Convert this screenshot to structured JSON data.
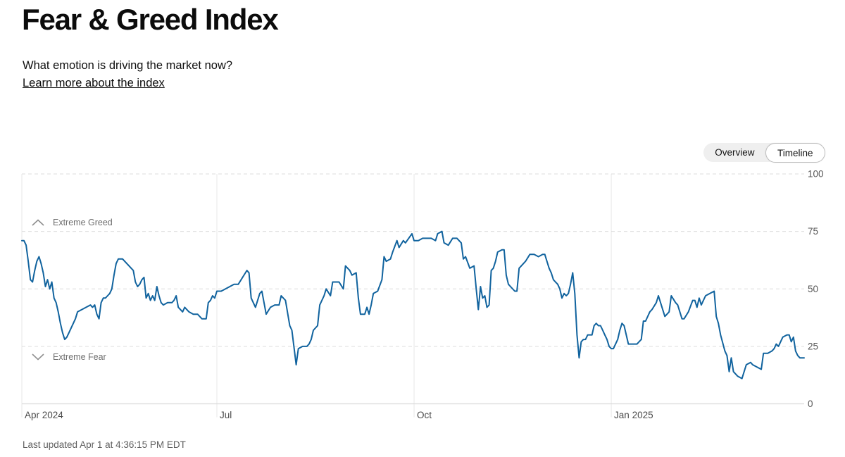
{
  "page": {
    "title": "Fear & Greed Index",
    "subtitle": "What emotion is driving the market now?",
    "learn_more_label": "Learn more about the index",
    "last_updated": "Last updated Apr 1 at 4:36:15 PM EDT"
  },
  "view_toggle": {
    "options": [
      {
        "label": "Overview",
        "selected": false
      },
      {
        "label": "Timeline",
        "selected": true
      }
    ]
  },
  "chart_data": {
    "type": "line",
    "series_name": "Fear & Greed Index",
    "x_unit": "days since 2024-04-01",
    "x_range_days": [
      0,
      365
    ],
    "ylim": [
      0,
      100
    ],
    "grid": true,
    "legend_position": "none",
    "colors": {
      "line": "#11639e",
      "grid_dashed": "#dcdcdc",
      "grid_vertical": "#e7e7e7",
      "axis_zero_line": "#d9d9d9",
      "tick_label": "#565656",
      "x_tick_label": "#4c4c4c",
      "annotation": "#6e6e6e",
      "annotation_icon": "#8f8f8f"
    },
    "y_ticks": [
      100,
      75,
      50,
      25,
      0
    ],
    "x_ticks": [
      {
        "day": 0,
        "label": "Apr 2024"
      },
      {
        "day": 91,
        "label": "Jul"
      },
      {
        "day": 183,
        "label": "Oct"
      },
      {
        "day": 275,
        "label": "Jan 2025"
      }
    ],
    "annotations": [
      {
        "icon": "chevron-up-icon",
        "label": "Extreme Greed",
        "y": 79
      },
      {
        "icon": "chevron-down-icon",
        "label": "Extreme Fear",
        "y": 20.4
      }
    ],
    "points": [
      [
        0,
        71
      ],
      [
        1,
        71
      ],
      [
        2,
        69
      ],
      [
        3,
        62
      ],
      [
        4,
        54
      ],
      [
        5,
        53
      ],
      [
        6,
        58
      ],
      [
        7,
        62
      ],
      [
        8,
        64
      ],
      [
        9,
        61
      ],
      [
        10,
        57
      ],
      [
        11,
        51
      ],
      [
        12,
        54
      ],
      [
        13,
        50
      ],
      [
        14,
        53
      ],
      [
        15,
        46
      ],
      [
        16,
        44
      ],
      [
        17,
        40
      ],
      [
        18,
        35
      ],
      [
        19,
        31
      ],
      [
        20,
        28
      ],
      [
        21,
        29
      ],
      [
        22,
        31
      ],
      [
        23,
        33
      ],
      [
        24,
        35
      ],
      [
        25,
        37
      ],
      [
        26,
        40
      ],
      [
        28,
        41
      ],
      [
        30,
        42
      ],
      [
        32,
        43
      ],
      [
        33,
        42
      ],
      [
        34,
        43
      ],
      [
        35,
        39
      ],
      [
        36,
        37
      ],
      [
        37,
        44
      ],
      [
        38,
        46
      ],
      [
        39,
        46
      ],
      [
        40,
        47
      ],
      [
        41,
        48
      ],
      [
        42,
        50
      ],
      [
        43,
        56
      ],
      [
        44,
        61
      ],
      [
        45,
        63
      ],
      [
        46,
        63
      ],
      [
        47,
        63
      ],
      [
        48,
        62
      ],
      [
        50,
        60
      ],
      [
        52,
        58
      ],
      [
        53,
        53
      ],
      [
        54,
        51
      ],
      [
        55,
        52
      ],
      [
        56,
        54
      ],
      [
        57,
        55
      ],
      [
        58,
        46
      ],
      [
        59,
        48
      ],
      [
        60,
        45
      ],
      [
        61,
        47
      ],
      [
        62,
        45
      ],
      [
        63,
        51
      ],
      [
        64,
        47
      ],
      [
        65,
        44
      ],
      [
        66,
        43
      ],
      [
        68,
        44
      ],
      [
        70,
        44
      ],
      [
        71,
        45
      ],
      [
        72,
        47
      ],
      [
        73,
        42
      ],
      [
        74,
        41
      ],
      [
        75,
        40
      ],
      [
        76,
        42
      ],
      [
        78,
        40
      ],
      [
        80,
        39
      ],
      [
        82,
        39
      ],
      [
        84,
        37
      ],
      [
        86,
        37
      ],
      [
        87,
        44
      ],
      [
        88,
        45
      ],
      [
        89,
        47
      ],
      [
        90,
        46
      ],
      [
        91,
        49
      ],
      [
        93,
        49
      ],
      [
        95,
        50
      ],
      [
        97,
        51
      ],
      [
        99,
        52
      ],
      [
        101,
        52
      ],
      [
        103,
        55
      ],
      [
        105,
        58
      ],
      [
        106,
        57
      ],
      [
        107,
        46
      ],
      [
        109,
        42
      ],
      [
        111,
        48
      ],
      [
        112,
        49
      ],
      [
        114,
        39
      ],
      [
        116,
        42
      ],
      [
        118,
        43
      ],
      [
        120,
        43
      ],
      [
        121,
        47
      ],
      [
        123,
        45
      ],
      [
        125,
        34
      ],
      [
        126,
        32
      ],
      [
        128,
        17
      ],
      [
        129,
        24
      ],
      [
        131,
        25
      ],
      [
        133,
        25
      ],
      [
        134,
        26
      ],
      [
        135,
        28
      ],
      [
        136,
        32
      ],
      [
        138,
        34
      ],
      [
        139,
        43
      ],
      [
        141,
        47
      ],
      [
        142,
        50
      ],
      [
        144,
        47
      ],
      [
        145,
        53
      ],
      [
        147,
        53
      ],
      [
        148,
        53
      ],
      [
        150,
        50
      ],
      [
        151,
        60
      ],
      [
        153,
        58
      ],
      [
        154,
        56
      ],
      [
        156,
        57
      ],
      [
        157,
        46
      ],
      [
        158,
        39
      ],
      [
        160,
        39
      ],
      [
        161,
        42
      ],
      [
        162,
        39
      ],
      [
        163,
        43
      ],
      [
        164,
        48
      ],
      [
        166,
        49
      ],
      [
        168,
        54
      ],
      [
        169,
        64
      ],
      [
        170,
        62
      ],
      [
        172,
        63
      ],
      [
        173,
        66
      ],
      [
        175,
        71
      ],
      [
        176,
        68
      ],
      [
        178,
        71
      ],
      [
        179,
        70
      ],
      [
        182,
        74
      ],
      [
        183,
        71
      ],
      [
        185,
        71
      ],
      [
        187,
        72
      ],
      [
        189,
        72
      ],
      [
        191,
        72
      ],
      [
        193,
        71
      ],
      [
        194,
        74
      ],
      [
        196,
        75
      ],
      [
        197,
        70
      ],
      [
        199,
        69
      ],
      [
        201,
        72
      ],
      [
        203,
        72
      ],
      [
        205,
        70
      ],
      [
        206,
        63
      ],
      [
        207,
        64
      ],
      [
        209,
        59
      ],
      [
        211,
        60
      ],
      [
        212,
        50
      ],
      [
        213,
        41
      ],
      [
        214,
        51
      ],
      [
        215,
        46
      ],
      [
        216,
        47
      ],
      [
        217,
        42
      ],
      [
        218,
        43
      ],
      [
        219,
        58
      ],
      [
        220,
        59
      ],
      [
        221,
        62
      ],
      [
        222,
        66
      ],
      [
        224,
        67
      ],
      [
        225,
        67
      ],
      [
        226,
        56
      ],
      [
        227,
        52
      ],
      [
        228,
        51
      ],
      [
        230,
        49
      ],
      [
        231,
        49
      ],
      [
        232,
        59
      ],
      [
        234,
        61
      ],
      [
        235,
        62
      ],
      [
        237,
        65
      ],
      [
        239,
        65
      ],
      [
        241,
        64
      ],
      [
        243,
        65
      ],
      [
        244,
        65
      ],
      [
        245,
        62
      ],
      [
        246,
        59
      ],
      [
        247,
        57
      ],
      [
        248,
        54
      ],
      [
        249,
        53
      ],
      [
        250,
        52
      ],
      [
        251,
        50
      ],
      [
        252,
        46
      ],
      [
        253,
        48
      ],
      [
        254,
        47
      ],
      [
        255,
        48
      ],
      [
        256,
        52
      ],
      [
        257,
        57
      ],
      [
        258,
        48
      ],
      [
        259,
        30
      ],
      [
        260,
        20
      ],
      [
        261,
        27
      ],
      [
        262,
        28
      ],
      [
        263,
        28
      ],
      [
        264,
        30
      ],
      [
        266,
        30
      ],
      [
        267,
        34
      ],
      [
        268,
        35
      ],
      [
        269,
        34
      ],
      [
        270,
        34
      ],
      [
        271,
        32
      ],
      [
        272,
        30
      ],
      [
        273,
        28
      ],
      [
        274,
        25
      ],
      [
        275,
        24
      ],
      [
        276,
        24
      ],
      [
        278,
        28
      ],
      [
        279,
        32
      ],
      [
        280,
        35
      ],
      [
        281,
        34
      ],
      [
        283,
        26
      ],
      [
        285,
        26
      ],
      [
        287,
        26
      ],
      [
        288,
        27
      ],
      [
        289,
        28
      ],
      [
        290,
        36
      ],
      [
        291,
        36
      ],
      [
        293,
        40
      ],
      [
        294,
        41
      ],
      [
        296,
        44
      ],
      [
        297,
        47
      ],
      [
        299,
        41
      ],
      [
        300,
        38
      ],
      [
        302,
        40
      ],
      [
        303,
        47
      ],
      [
        305,
        44
      ],
      [
        306,
        43
      ],
      [
        308,
        37
      ],
      [
        309,
        37
      ],
      [
        311,
        40
      ],
      [
        313,
        45
      ],
      [
        314,
        45
      ],
      [
        315,
        42
      ],
      [
        316,
        46
      ],
      [
        317,
        43
      ],
      [
        319,
        47
      ],
      [
        321,
        48
      ],
      [
        323,
        49
      ],
      [
        324,
        38
      ],
      [
        325,
        35
      ],
      [
        326,
        30
      ],
      [
        328,
        23
      ],
      [
        329,
        21
      ],
      [
        330,
        14
      ],
      [
        331,
        20
      ],
      [
        332,
        14
      ],
      [
        334,
        12
      ],
      [
        336,
        11
      ],
      [
        338,
        17
      ],
      [
        340,
        18
      ],
      [
        341,
        17
      ],
      [
        343,
        16
      ],
      [
        345,
        15
      ],
      [
        346,
        22
      ],
      [
        348,
        22
      ],
      [
        350,
        23
      ],
      [
        351,
        24
      ],
      [
        352,
        26
      ],
      [
        353,
        25
      ],
      [
        355,
        29
      ],
      [
        357,
        30
      ],
      [
        358,
        30
      ],
      [
        359,
        27
      ],
      [
        360,
        29
      ],
      [
        361,
        23
      ],
      [
        362,
        21
      ],
      [
        363,
        20
      ],
      [
        365,
        20
      ]
    ]
  }
}
